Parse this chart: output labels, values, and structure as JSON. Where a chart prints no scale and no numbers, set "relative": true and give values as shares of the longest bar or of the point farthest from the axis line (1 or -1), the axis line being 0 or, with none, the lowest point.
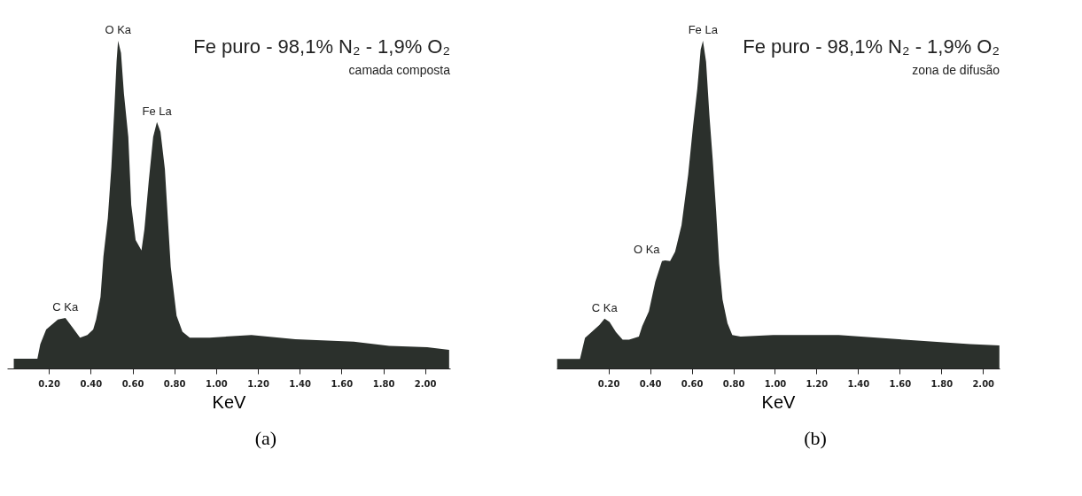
{
  "chart_data": [
    {
      "type": "area",
      "title": "Fe puro - 98,1% N₂ - 1,9% O₂",
      "subtitle": "camada composta",
      "xlabel": "KeV",
      "relative": true,
      "tick_labels": "x",
      "color": "#2b302c",
      "xlim": [
        0.0,
        2.12
      ],
      "xticks": [
        {
          "value": 0.2,
          "label": "0.20"
        },
        {
          "value": 0.4,
          "label": "0.40"
        },
        {
          "value": 0.6,
          "label": "0.60"
        },
        {
          "value": 0.8,
          "label": "0.80"
        },
        {
          "value": 1.0,
          "label": "1.00"
        },
        {
          "value": 1.2,
          "label": "1.20"
        },
        {
          "value": 1.4,
          "label": "1.40"
        },
        {
          "value": 1.6,
          "label": "1.60"
        },
        {
          "value": 1.8,
          "label": "1.80"
        },
        {
          "value": 2.0,
          "label": "2.00"
        }
      ],
      "x": [
        0.032,
        0.145,
        0.159,
        0.187,
        0.243,
        0.279,
        0.314,
        0.349,
        0.384,
        0.412,
        0.426,
        0.447,
        0.461,
        0.482,
        0.499,
        0.513,
        0.524,
        0.531,
        0.545,
        0.559,
        0.58,
        0.594,
        0.615,
        0.643,
        0.657,
        0.678,
        0.699,
        0.717,
        0.734,
        0.755,
        0.769,
        0.783,
        0.811,
        0.839,
        0.874,
        0.969,
        1.169,
        1.379,
        1.659,
        1.828,
        2.01,
        2.115
      ],
      "values": [
        0.03,
        0.03,
        0.074,
        0.119,
        0.149,
        0.154,
        0.124,
        0.094,
        0.102,
        0.119,
        0.149,
        0.218,
        0.342,
        0.459,
        0.615,
        0.789,
        0.938,
        1.0,
        0.963,
        0.839,
        0.707,
        0.499,
        0.392,
        0.36,
        0.424,
        0.573,
        0.707,
        0.752,
        0.722,
        0.608,
        0.459,
        0.31,
        0.161,
        0.112,
        0.094,
        0.094,
        0.102,
        0.089,
        0.082,
        0.069,
        0.065,
        0.057
      ],
      "annotations": [
        {
          "text": "O Ka",
          "x": 0.531,
          "y": 1.0
        },
        {
          "text": "Fe La",
          "x": 0.717,
          "y": 0.752
        },
        {
          "text": "C Ka",
          "x": 0.279,
          "y": 0.154
        },
        "(a)"
      ]
    },
    {
      "type": "area",
      "title": "Fe puro - 98,1% N₂ - 1,9% O₂",
      "subtitle": "zona de difusão",
      "xlabel": "KeV",
      "relative": true,
      "tick_labels": "x",
      "color": "#2b302c",
      "xlim": [
        -0.05,
        2.08
      ],
      "xticks": [
        {
          "value": 0.2,
          "label": "0.20"
        },
        {
          "value": 0.4,
          "label": "0.40"
        },
        {
          "value": 0.6,
          "label": "0.60"
        },
        {
          "value": 0.8,
          "label": "0.80"
        },
        {
          "value": 1.0,
          "label": "1.00"
        },
        {
          "value": 1.2,
          "label": "1.20"
        },
        {
          "value": 1.4,
          "label": "1.40"
        },
        {
          "value": 1.6,
          "label": "1.60"
        },
        {
          "value": 1.8,
          "label": "1.80"
        },
        {
          "value": 2.0,
          "label": "2.00"
        }
      ],
      "x": [
        -0.047,
        0.063,
        0.087,
        0.118,
        0.157,
        0.181,
        0.205,
        0.236,
        0.268,
        0.299,
        0.346,
        0.362,
        0.394,
        0.425,
        0.457,
        0.472,
        0.496,
        0.52,
        0.551,
        0.583,
        0.606,
        0.627,
        0.643,
        0.654,
        0.669,
        0.685,
        0.701,
        0.717,
        0.732,
        0.748,
        0.772,
        0.795,
        0.835,
        0.992,
        1.307,
        1.622,
        1.937,
        2.079
      ],
      "values": [
        0.029,
        0.029,
        0.093,
        0.111,
        0.133,
        0.152,
        0.142,
        0.111,
        0.088,
        0.088,
        0.097,
        0.129,
        0.174,
        0.265,
        0.328,
        0.33,
        0.328,
        0.356,
        0.437,
        0.592,
        0.737,
        0.855,
        0.973,
        1.0,
        0.936,
        0.773,
        0.637,
        0.483,
        0.319,
        0.211,
        0.138,
        0.102,
        0.097,
        0.102,
        0.102,
        0.088,
        0.074,
        0.07
      ],
      "annotations": [
        {
          "text": "Fe La",
          "x": 0.654,
          "y": 1.0
        },
        {
          "text": "O Ka",
          "x": 0.472,
          "y": 0.33
        },
        {
          "text": "C Ka",
          "x": 0.181,
          "y": 0.152
        },
        "(b)"
      ]
    }
  ]
}
